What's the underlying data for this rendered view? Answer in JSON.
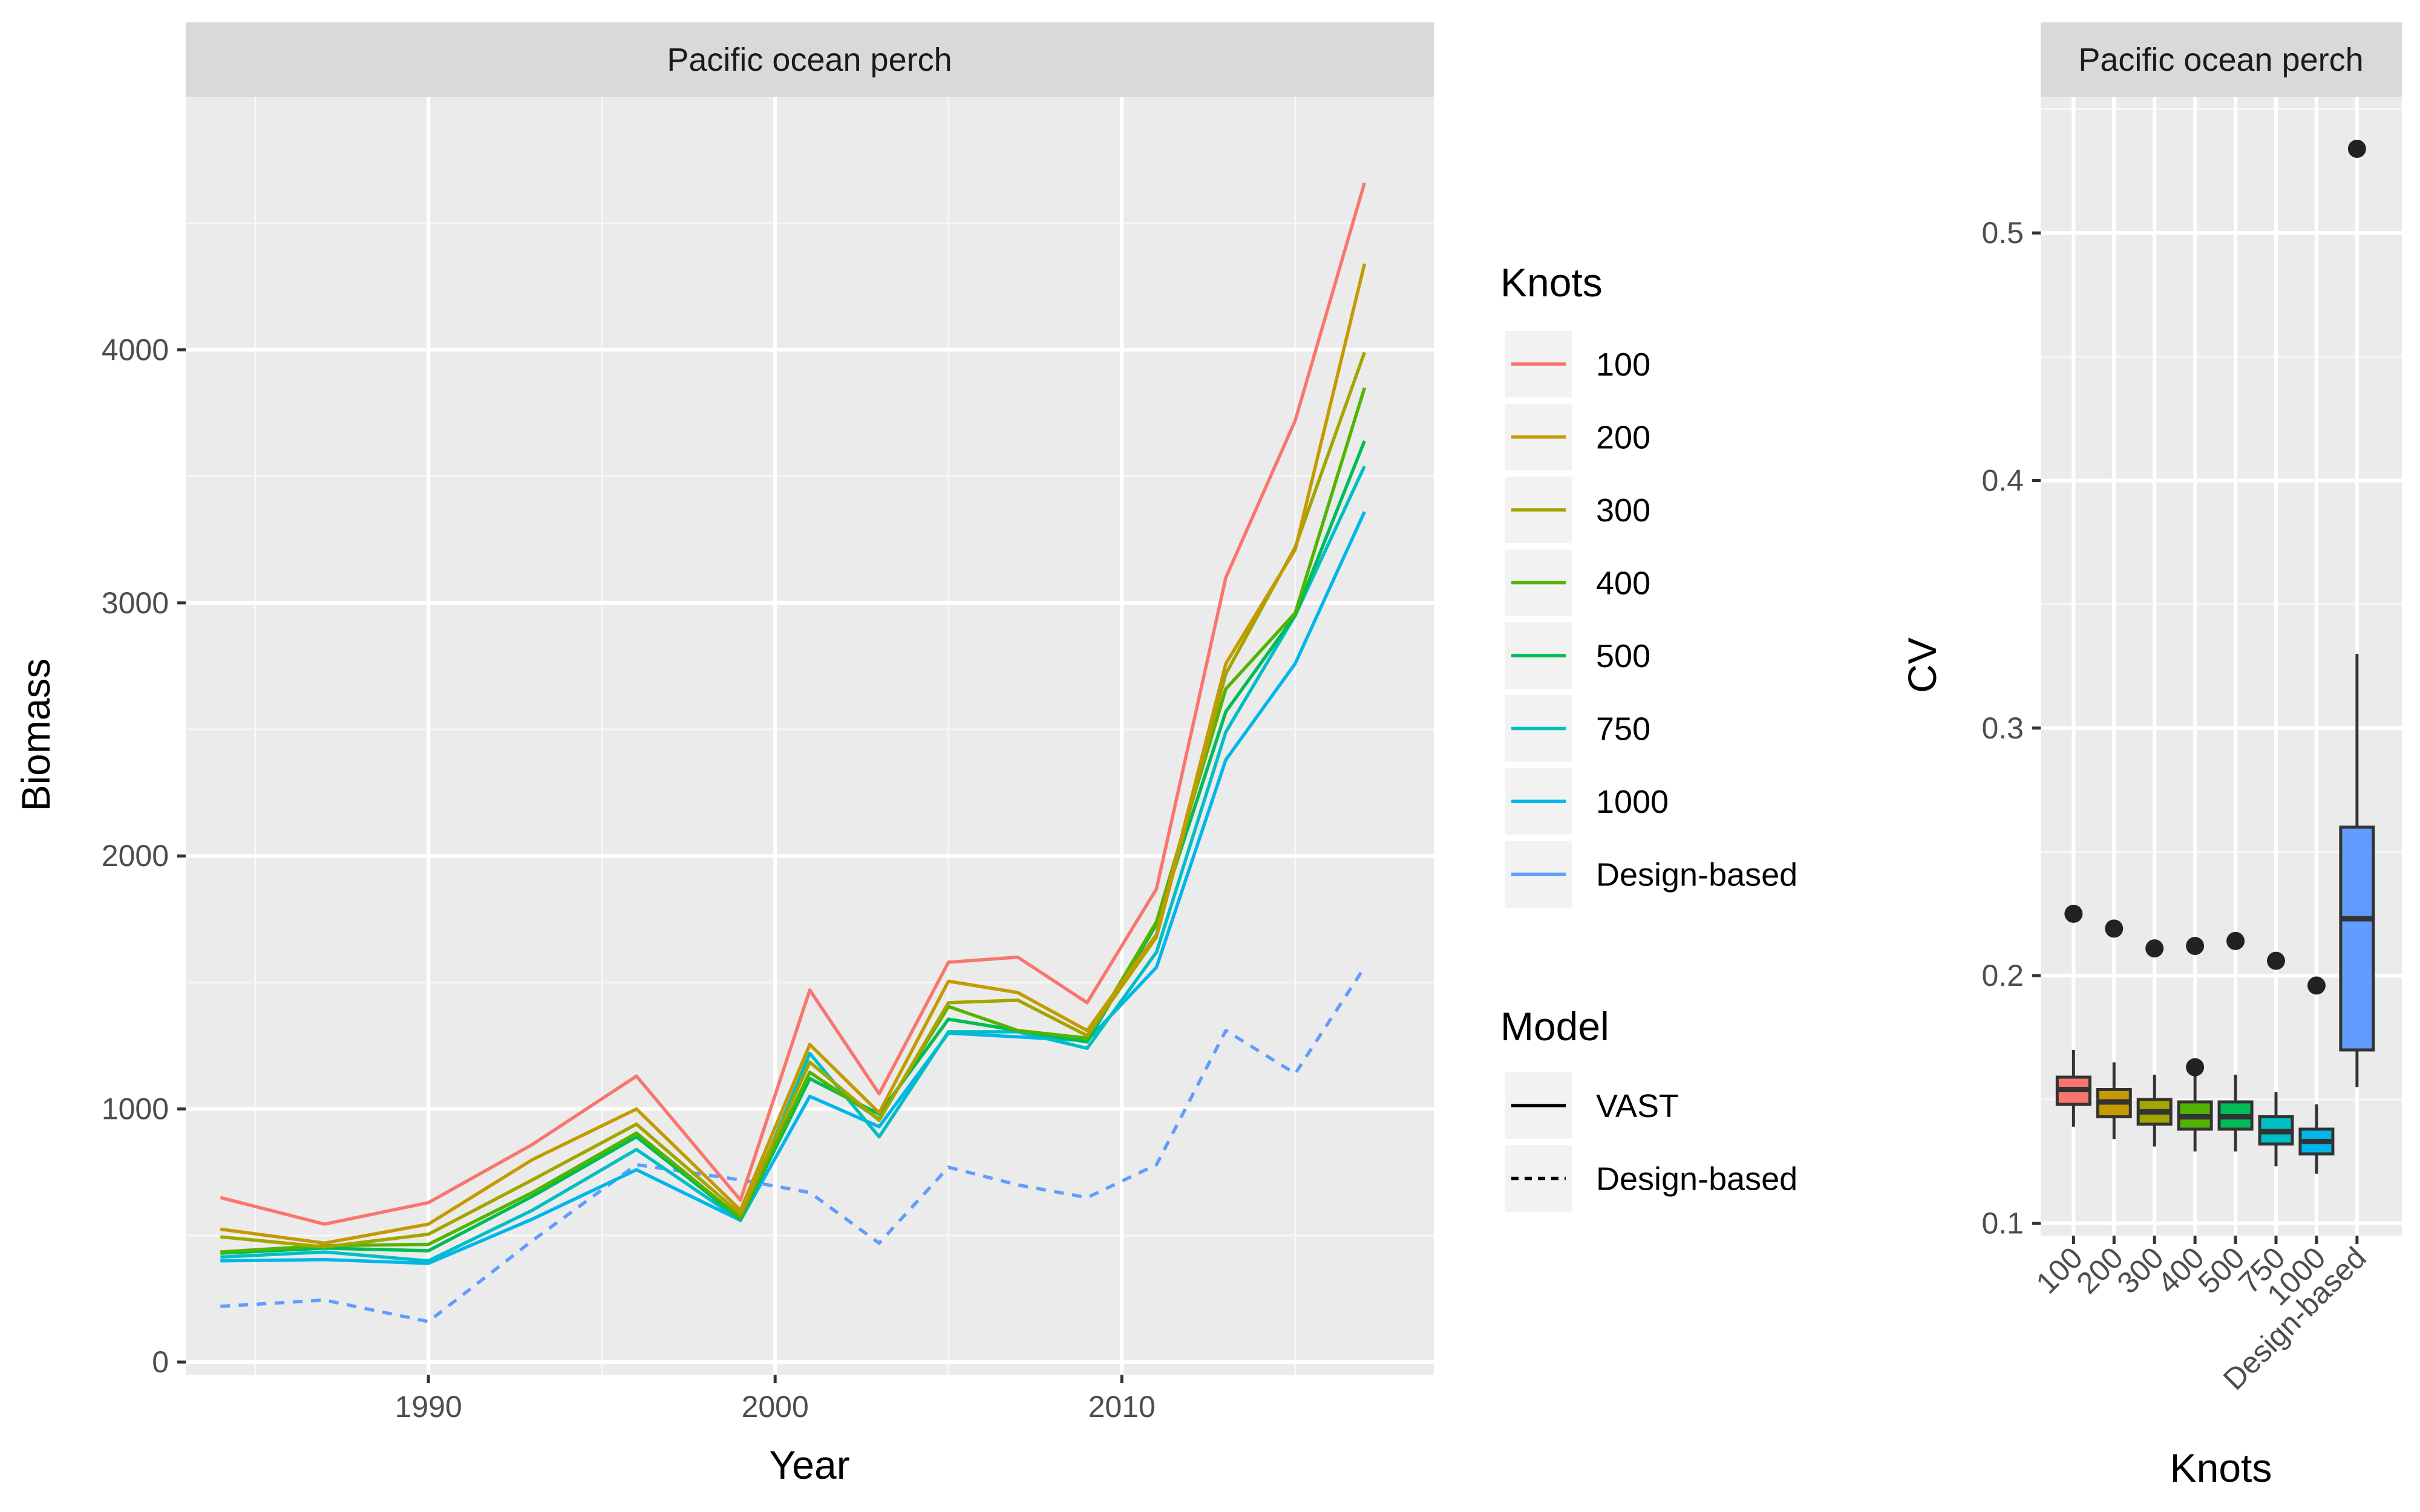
{
  "chart_data": [
    {
      "type": "line",
      "panel_title": "Pacific ocean perch",
      "xlabel": "Year",
      "ylabel": "Biomass",
      "xlim": [
        1983,
        2019
      ],
      "ylim": [
        -50,
        5000
      ],
      "xticks": [
        1990,
        2000,
        2010
      ],
      "yticks": [
        0,
        1000,
        2000,
        3000,
        4000
      ],
      "grid": true,
      "x": [
        1984,
        1987,
        1990,
        1993,
        1996,
        1999,
        2001,
        2003,
        2005,
        2007,
        2009,
        2011,
        2013,
        2015,
        2017
      ],
      "series": [
        {
          "name": "100",
          "model": "VAST",
          "color": "#F8766D",
          "values": [
            650,
            545,
            630,
            860,
            1130,
            640,
            1470,
            1060,
            1580,
            1600,
            1420,
            1870,
            3100,
            3720,
            4660
          ]
        },
        {
          "name": "200",
          "model": "VAST",
          "color": "#C49A00",
          "values": [
            525,
            470,
            545,
            800,
            1000,
            600,
            1255,
            985,
            1505,
            1460,
            1310,
            1690,
            2760,
            3210,
            4340
          ]
        },
        {
          "name": "300",
          "model": "VAST",
          "color": "#A3A500",
          "values": [
            495,
            455,
            505,
            720,
            940,
            585,
            1185,
            955,
            1420,
            1430,
            1290,
            1680,
            2720,
            3220,
            3990
          ]
        },
        {
          "name": "400",
          "model": "VAST",
          "color": "#53B400",
          "values": [
            435,
            460,
            465,
            670,
            905,
            570,
            1145,
            960,
            1405,
            1310,
            1280,
            1740,
            2660,
            2960,
            3850
          ]
        },
        {
          "name": "500",
          "model": "VAST",
          "color": "#00BC56",
          "values": [
            430,
            450,
            440,
            655,
            890,
            565,
            1120,
            980,
            1355,
            1310,
            1265,
            1730,
            2570,
            2950,
            3640
          ]
        },
        {
          "name": "750",
          "model": "VAST",
          "color": "#00BFC4",
          "values": [
            415,
            435,
            400,
            600,
            840,
            560,
            1220,
            890,
            1305,
            1305,
            1240,
            1620,
            2490,
            2950,
            3540
          ]
        },
        {
          "name": "1000",
          "model": "VAST",
          "color": "#00B6EB",
          "values": [
            400,
            405,
            390,
            565,
            760,
            560,
            1050,
            930,
            1300,
            1285,
            1270,
            1560,
            2380,
            2760,
            3360
          ]
        },
        {
          "name": "Design-based",
          "model": "Design-based",
          "color": "#619CFF",
          "values": [
            220,
            245,
            160,
            480,
            780,
            720,
            670,
            470,
            770,
            700,
            650,
            780,
            1310,
            1140,
            1560
          ]
        }
      ],
      "legend": {
        "placement": "right",
        "knots_title": "Knots",
        "knots": [
          {
            "label": "100",
            "color": "#F8766D"
          },
          {
            "label": "200",
            "color": "#C49A00"
          },
          {
            "label": "300",
            "color": "#A3A500"
          },
          {
            "label": "400",
            "color": "#53B400"
          },
          {
            "label": "500",
            "color": "#00BC56"
          },
          {
            "label": "750",
            "color": "#00BFC4"
          },
          {
            "label": "1000",
            "color": "#00B6EB"
          },
          {
            "label": "Design-based",
            "color": "#619CFF"
          }
        ],
        "model_title": "Model",
        "models": [
          {
            "label": "VAST",
            "dash": "solid"
          },
          {
            "label": "Design-based",
            "dash": "dashed"
          }
        ]
      }
    },
    {
      "type": "box",
      "panel_title": "Pacific ocean perch",
      "xlabel": "Knots",
      "ylabel": "CV",
      "ylim": [
        0.095,
        0.555
      ],
      "yticks": [
        0.1,
        0.2,
        0.3,
        0.4,
        0.5
      ],
      "grid": true,
      "boxes": [
        {
          "label": "100",
          "color": "#F8766D",
          "min": 0.139,
          "q1": 0.148,
          "median": 0.154,
          "q3": 0.159,
          "max": 0.17,
          "outliers": [
            0.225
          ]
        },
        {
          "label": "200",
          "color": "#C49A00",
          "min": 0.134,
          "q1": 0.143,
          "median": 0.149,
          "q3": 0.154,
          "max": 0.165,
          "outliers": [
            0.219
          ]
        },
        {
          "label": "300",
          "color": "#A3A500",
          "min": 0.131,
          "q1": 0.14,
          "median": 0.145,
          "q3": 0.15,
          "max": 0.16,
          "outliers": [
            0.211
          ]
        },
        {
          "label": "400",
          "color": "#53B400",
          "min": 0.129,
          "q1": 0.138,
          "median": 0.143,
          "q3": 0.149,
          "max": 0.16,
          "outliers": [
            0.212,
            0.163
          ]
        },
        {
          "label": "500",
          "color": "#00BC56",
          "min": 0.129,
          "q1": 0.138,
          "median": 0.143,
          "q3": 0.149,
          "max": 0.16,
          "outliers": [
            0.214
          ]
        },
        {
          "label": "750",
          "color": "#00BFC4",
          "min": 0.123,
          "q1": 0.132,
          "median": 0.137,
          "q3": 0.143,
          "max": 0.153,
          "outliers": [
            0.206
          ]
        },
        {
          "label": "1000",
          "color": "#00B6EB",
          "min": 0.12,
          "q1": 0.128,
          "median": 0.133,
          "q3": 0.138,
          "max": 0.148,
          "outliers": [
            0.196
          ]
        },
        {
          "label": "Design-based",
          "color": "#619CFF",
          "min": 0.155,
          "q1": 0.17,
          "median": 0.223,
          "q3": 0.26,
          "max": 0.33,
          "outliers": [
            0.534
          ]
        }
      ]
    }
  ]
}
